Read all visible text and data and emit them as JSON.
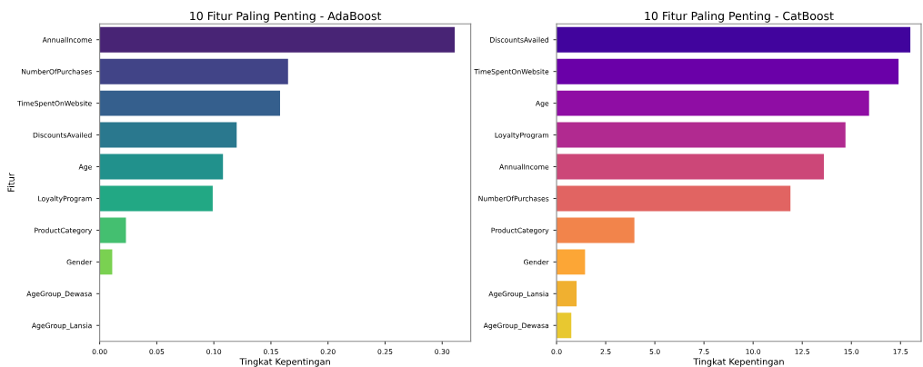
{
  "chart_data": [
    {
      "type": "bar",
      "orientation": "horizontal",
      "title": "10 Fitur Paling Penting - AdaBoost",
      "xlabel": "Tingkat Kepentingan",
      "ylabel": "Fitur",
      "categories": [
        "AnnualIncome",
        "NumberOfPurchases",
        "TimeSpentOnWebsite",
        "DiscountsAvailed",
        "Age",
        "LoyaltyProgram",
        "ProductCategory",
        "Gender",
        "AgeGroup_Dewasa",
        "AgeGroup_Lansia"
      ],
      "values": [
        0.311,
        0.165,
        0.158,
        0.12,
        0.108,
        0.099,
        0.023,
        0.011,
        0,
        0
      ],
      "colors": [
        "#482475",
        "#414487",
        "#355f8d",
        "#2a788e",
        "#21918c",
        "#22a884",
        "#44bf70",
        "#7ad151",
        "#bddf26",
        "#fde725"
      ],
      "xlim": [
        0,
        0.325
      ],
      "xticks": [
        {
          "value": 0,
          "label": "0.00"
        },
        {
          "value": 0.05,
          "label": "0.05"
        },
        {
          "value": 0.1,
          "label": "0.10"
        },
        {
          "value": 0.15,
          "label": "0.15"
        },
        {
          "value": 0.2,
          "label": "0.20"
        },
        {
          "value": 0.25,
          "label": "0.25"
        },
        {
          "value": 0.3,
          "label": "0.30"
        }
      ]
    },
    {
      "type": "bar",
      "orientation": "horizontal",
      "title": "10 Fitur Paling Penting - CatBoost",
      "xlabel": "Tingkat Kepentingan",
      "categories": [
        "DiscountsAvailed",
        "TimeSpentOnWebsite",
        "Age",
        "LoyaltyProgram",
        "AnnualIncome",
        "NumberOfPurchases",
        "ProductCategory",
        "Gender",
        "AgeGroup_Lansia",
        "AgeGroup_Dewasa"
      ],
      "values": [
        18.0,
        17.4,
        15.9,
        14.7,
        13.6,
        11.9,
        3.96,
        1.45,
        1.02,
        0.75
      ],
      "colors": [
        "#41049d",
        "#6a00a8",
        "#8f0da4",
        "#b12a90",
        "#cc4778",
        "#e16462",
        "#f2844b",
        "#fca636",
        "#f0b030",
        "#e8c830"
      ],
      "xlim": [
        0,
        18.55
      ],
      "xticks": [
        {
          "value": 0,
          "label": "0.0"
        },
        {
          "value": 2.5,
          "label": "2.5"
        },
        {
          "value": 5,
          "label": "5.0"
        },
        {
          "value": 7.5,
          "label": "7.5"
        },
        {
          "value": 10,
          "label": "10.0"
        },
        {
          "value": 12.5,
          "label": "12.5"
        },
        {
          "value": 15,
          "label": "15.0"
        },
        {
          "value": 17.5,
          "label": "17.5"
        }
      ]
    }
  ]
}
